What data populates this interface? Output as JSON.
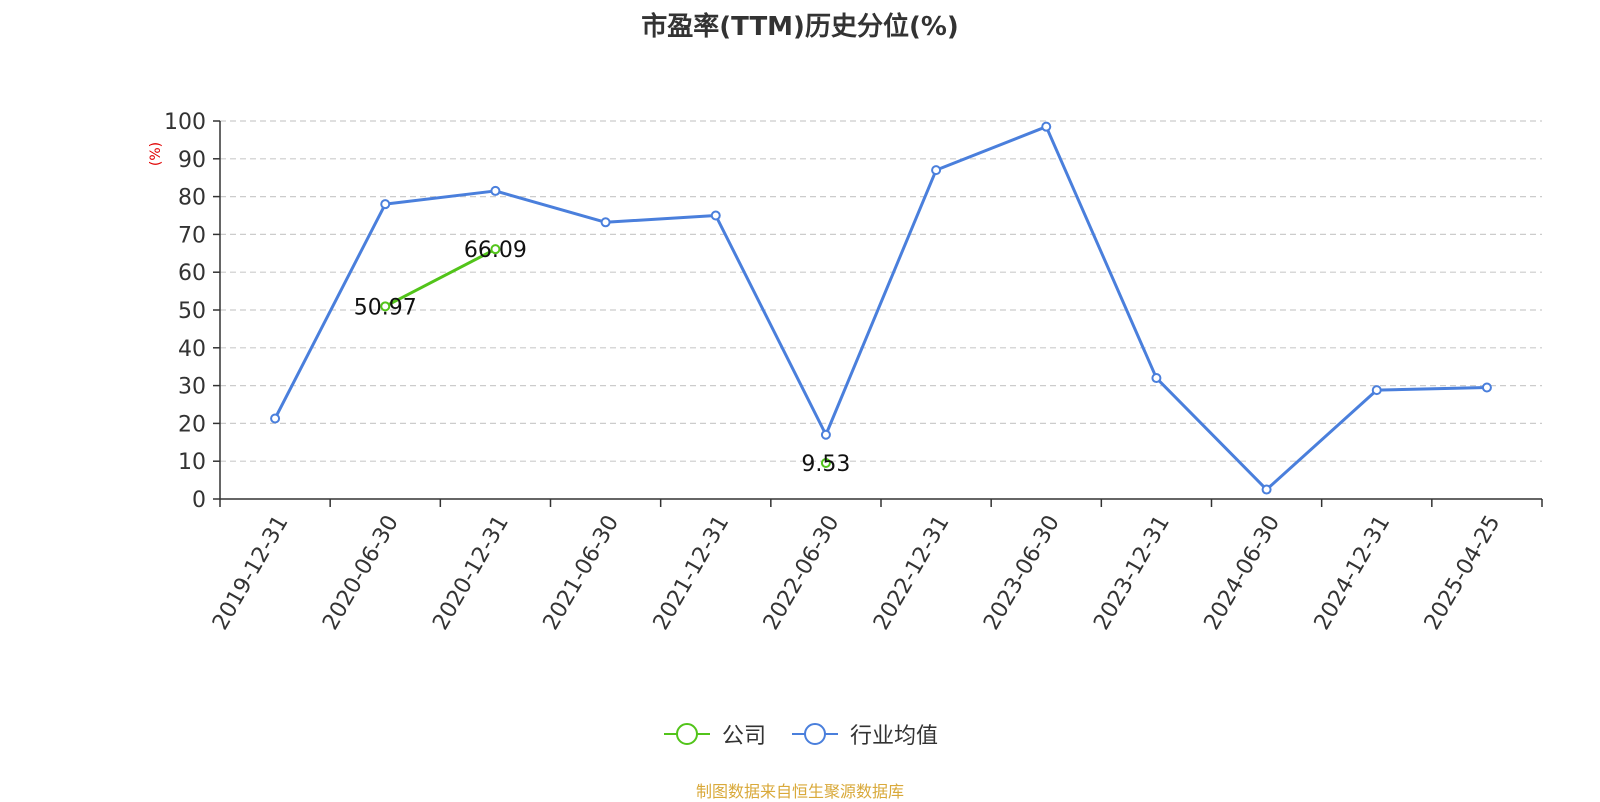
{
  "chart_data": {
    "type": "line",
    "title": "市盈率(TTM)历史分位(%)",
    "ylabel": "(%)",
    "ylim": [
      0,
      100
    ],
    "yticks": [
      0,
      10,
      20,
      30,
      40,
      50,
      60,
      70,
      80,
      90,
      100
    ],
    "grid": true,
    "legend_position": "bottom-center",
    "categories": [
      "2019-12-31",
      "2020-06-30",
      "2020-12-31",
      "2021-06-30",
      "2021-12-31",
      "2022-06-30",
      "2022-12-31",
      "2023-06-30",
      "2023-12-31",
      "2024-06-30",
      "2024-12-31",
      "2025-04-25"
    ],
    "series": [
      {
        "name": "公司",
        "color": "#52c41a",
        "values": [
          null,
          50.97,
          66.09,
          null,
          null,
          9.53,
          null,
          null,
          null,
          null,
          null,
          null
        ],
        "labels": [
          null,
          "50.97",
          "66.09",
          null,
          null,
          "9.53",
          null,
          null,
          null,
          null,
          null,
          null
        ]
      },
      {
        "name": "行业均值",
        "color": "#4a7fdc",
        "values": [
          21.3,
          78.0,
          81.5,
          73.2,
          75.0,
          17.0,
          87.0,
          98.5,
          32.0,
          2.5,
          28.8,
          29.5
        ]
      }
    ]
  },
  "source": "制图数据来自恒生聚源数据库"
}
